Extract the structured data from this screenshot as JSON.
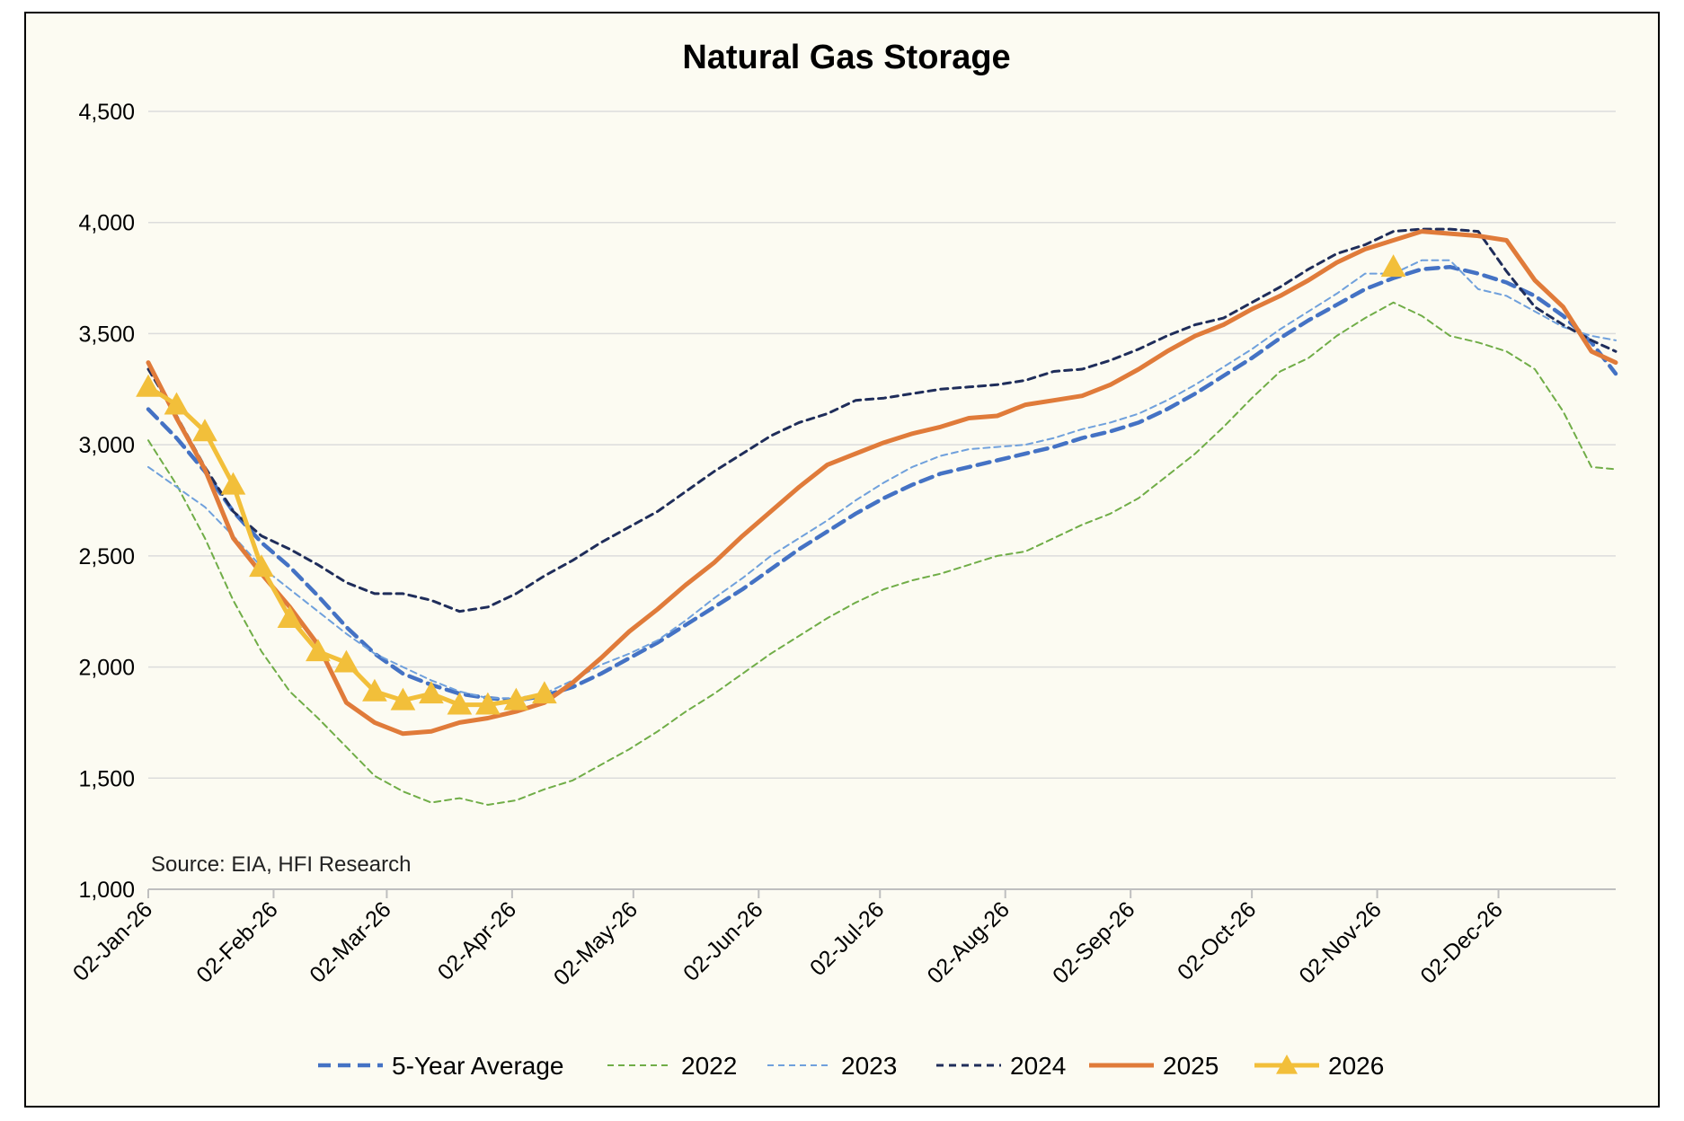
{
  "chart_data": {
    "type": "line",
    "title": "Natural Gas Storage",
    "source_note": "Source: EIA, HFI Research",
    "ylim": [
      1000,
      4500
    ],
    "yticks": [
      1000,
      1500,
      2000,
      2500,
      3000,
      3500,
      4000,
      4500
    ],
    "ytick_labels": [
      "1,000",
      "1,500",
      "2,000",
      "2,500",
      "3,000",
      "3,500",
      "4,000",
      "4,500"
    ],
    "xlim": [
      "2026-01-02",
      "2026-12-31"
    ],
    "xticks": [
      "2026-01-02",
      "2026-02-02",
      "2026-03-02",
      "2026-04-02",
      "2026-05-02",
      "2026-06-02",
      "2026-07-02",
      "2026-08-02",
      "2026-09-02",
      "2026-10-02",
      "2026-11-02",
      "2026-12-02"
    ],
    "xtick_labels": [
      "02-Jan-26",
      "02-Feb-26",
      "02-Mar-26",
      "02-Apr-26",
      "02-May-26",
      "02-Jun-26",
      "02-Jul-26",
      "02-Aug-26",
      "02-Sep-26",
      "02-Oct-26",
      "02-Nov-26",
      "02-Dec-26"
    ],
    "grid": true,
    "legend_position": "bottom",
    "colors": {
      "background": "#fcfbf2",
      "grid": "#dcdcdc",
      "axis": "#bfbfbf",
      "border": "#000000"
    },
    "series": [
      {
        "name": "5-Year Average",
        "color": "#4472c4",
        "dash": "dashed-thick",
        "marker": "none",
        "x": [
          "2026-01-02",
          "2026-01-09",
          "2026-01-16",
          "2026-01-23",
          "2026-01-30",
          "2026-02-06",
          "2026-02-13",
          "2026-02-20",
          "2026-02-27",
          "2026-03-06",
          "2026-03-13",
          "2026-03-20",
          "2026-03-27",
          "2026-04-03",
          "2026-04-10",
          "2026-04-17",
          "2026-04-24",
          "2026-05-01",
          "2026-05-08",
          "2026-05-15",
          "2026-05-22",
          "2026-05-29",
          "2026-06-05",
          "2026-06-12",
          "2026-06-19",
          "2026-06-26",
          "2026-07-03",
          "2026-07-10",
          "2026-07-17",
          "2026-07-24",
          "2026-07-31",
          "2026-08-07",
          "2026-08-14",
          "2026-08-21",
          "2026-08-28",
          "2026-09-04",
          "2026-09-11",
          "2026-09-18",
          "2026-09-25",
          "2026-10-02",
          "2026-10-09",
          "2026-10-16",
          "2026-10-23",
          "2026-10-30",
          "2026-11-06",
          "2026-11-13",
          "2026-11-20",
          "2026-11-27",
          "2026-12-04",
          "2026-12-11",
          "2026-12-18",
          "2026-12-25",
          "2026-12-31"
        ],
        "values": [
          3160,
          3030,
          2880,
          2700,
          2560,
          2450,
          2320,
          2180,
          2060,
          1970,
          1920,
          1880,
          1860,
          1850,
          1870,
          1910,
          1970,
          2040,
          2110,
          2190,
          2270,
          2350,
          2440,
          2530,
          2610,
          2690,
          2760,
          2820,
          2870,
          2900,
          2930,
          2960,
          2990,
          3030,
          3060,
          3100,
          3160,
          3230,
          3310,
          3390,
          3480,
          3560,
          3630,
          3700,
          3750,
          3790,
          3800,
          3770,
          3730,
          3670,
          3580,
          3460,
          3320
        ]
      },
      {
        "name": "2022",
        "color": "#70ad47",
        "dash": "dashed-thin",
        "marker": "none",
        "x": [
          "2026-01-02",
          "2026-01-09",
          "2026-01-16",
          "2026-01-23",
          "2026-01-30",
          "2026-02-06",
          "2026-02-13",
          "2026-02-20",
          "2026-02-27",
          "2026-03-06",
          "2026-03-13",
          "2026-03-20",
          "2026-03-27",
          "2026-04-03",
          "2026-04-10",
          "2026-04-17",
          "2026-04-24",
          "2026-05-01",
          "2026-05-08",
          "2026-05-15",
          "2026-05-22",
          "2026-05-29",
          "2026-06-05",
          "2026-06-12",
          "2026-06-19",
          "2026-06-26",
          "2026-07-03",
          "2026-07-10",
          "2026-07-17",
          "2026-07-24",
          "2026-07-31",
          "2026-08-07",
          "2026-08-14",
          "2026-08-21",
          "2026-08-28",
          "2026-09-04",
          "2026-09-11",
          "2026-09-18",
          "2026-09-25",
          "2026-10-02",
          "2026-10-09",
          "2026-10-16",
          "2026-10-23",
          "2026-10-30",
          "2026-11-06",
          "2026-11-13",
          "2026-11-20",
          "2026-11-27",
          "2026-12-04",
          "2026-12-11",
          "2026-12-18",
          "2026-12-25",
          "2026-12-31"
        ],
        "values": [
          3020,
          2820,
          2580,
          2300,
          2070,
          1890,
          1770,
          1640,
          1510,
          1440,
          1390,
          1410,
          1380,
          1400,
          1450,
          1490,
          1560,
          1630,
          1710,
          1800,
          1880,
          1970,
          2060,
          2140,
          2220,
          2290,
          2350,
          2390,
          2420,
          2460,
          2500,
          2520,
          2580,
          2640,
          2690,
          2760,
          2860,
          2960,
          3080,
          3210,
          3330,
          3390,
          3490,
          3570,
          3640,
          3580,
          3490,
          3460,
          3420,
          3340,
          3150,
          2900,
          2890
        ]
      },
      {
        "name": "2023",
        "color": "#6fa0dc",
        "dash": "dashed-thin",
        "marker": "none",
        "x": [
          "2026-01-02",
          "2026-01-09",
          "2026-01-16",
          "2026-01-23",
          "2026-01-30",
          "2026-02-06",
          "2026-02-13",
          "2026-02-20",
          "2026-02-27",
          "2026-03-06",
          "2026-03-13",
          "2026-03-20",
          "2026-03-27",
          "2026-04-03",
          "2026-04-10",
          "2026-04-17",
          "2026-04-24",
          "2026-05-01",
          "2026-05-08",
          "2026-05-15",
          "2026-05-22",
          "2026-05-29",
          "2026-06-05",
          "2026-06-12",
          "2026-06-19",
          "2026-06-26",
          "2026-07-03",
          "2026-07-10",
          "2026-07-17",
          "2026-07-24",
          "2026-07-31",
          "2026-08-07",
          "2026-08-14",
          "2026-08-21",
          "2026-08-28",
          "2026-09-04",
          "2026-09-11",
          "2026-09-18",
          "2026-09-25",
          "2026-10-02",
          "2026-10-09",
          "2026-10-16",
          "2026-10-23",
          "2026-10-30",
          "2026-11-06",
          "2026-11-13",
          "2026-11-20",
          "2026-11-27",
          "2026-12-04",
          "2026-12-11",
          "2026-12-18",
          "2026-12-25",
          "2026-12-31"
        ],
        "values": [
          2900,
          2810,
          2720,
          2590,
          2450,
          2350,
          2250,
          2150,
          2060,
          2000,
          1940,
          1890,
          1860,
          1860,
          1880,
          1940,
          2010,
          2060,
          2120,
          2210,
          2310,
          2400,
          2500,
          2580,
          2660,
          2750,
          2830,
          2900,
          2950,
          2980,
          2990,
          3000,
          3030,
          3070,
          3100,
          3140,
          3200,
          3270,
          3350,
          3430,
          3520,
          3600,
          3680,
          3770,
          3770,
          3830,
          3830,
          3700,
          3670,
          3600,
          3530,
          3490,
          3470
        ]
      },
      {
        "name": "2024",
        "color": "#1f2d5a",
        "dash": "dashed-medium",
        "marker": "none",
        "x": [
          "2026-01-02",
          "2026-01-09",
          "2026-01-16",
          "2026-01-23",
          "2026-01-30",
          "2026-02-06",
          "2026-02-13",
          "2026-02-20",
          "2026-02-27",
          "2026-03-06",
          "2026-03-13",
          "2026-03-20",
          "2026-03-27",
          "2026-04-03",
          "2026-04-10",
          "2026-04-17",
          "2026-04-24",
          "2026-05-01",
          "2026-05-08",
          "2026-05-15",
          "2026-05-22",
          "2026-05-29",
          "2026-06-05",
          "2026-06-12",
          "2026-06-19",
          "2026-06-26",
          "2026-07-03",
          "2026-07-10",
          "2026-07-17",
          "2026-07-24",
          "2026-07-31",
          "2026-08-07",
          "2026-08-14",
          "2026-08-21",
          "2026-08-28",
          "2026-09-04",
          "2026-09-11",
          "2026-09-18",
          "2026-09-25",
          "2026-10-02",
          "2026-10-09",
          "2026-10-16",
          "2026-10-23",
          "2026-10-30",
          "2026-11-06",
          "2026-11-13",
          "2026-11-20",
          "2026-11-27",
          "2026-12-04",
          "2026-12-11",
          "2026-12-18",
          "2026-12-25",
          "2026-12-31"
        ],
        "values": [
          3340,
          3130,
          2900,
          2700,
          2590,
          2530,
          2460,
          2380,
          2330,
          2330,
          2300,
          2250,
          2270,
          2330,
          2410,
          2480,
          2560,
          2630,
          2700,
          2790,
          2880,
          2960,
          3040,
          3100,
          3140,
          3200,
          3210,
          3230,
          3250,
          3260,
          3270,
          3290,
          3330,
          3340,
          3380,
          3430,
          3490,
          3540,
          3570,
          3640,
          3710,
          3790,
          3860,
          3900,
          3960,
          3970,
          3970,
          3960,
          3780,
          3620,
          3540,
          3470,
          3420
        ]
      },
      {
        "name": "2025",
        "color": "#e07b3a",
        "dash": "solid",
        "marker": "none",
        "x": [
          "2026-01-02",
          "2026-01-09",
          "2026-01-16",
          "2026-01-23",
          "2026-01-30",
          "2026-02-06",
          "2026-02-13",
          "2026-02-20",
          "2026-02-27",
          "2026-03-06",
          "2026-03-13",
          "2026-03-20",
          "2026-03-27",
          "2026-04-03",
          "2026-04-10",
          "2026-04-17",
          "2026-04-24",
          "2026-05-01",
          "2026-05-08",
          "2026-05-15",
          "2026-05-22",
          "2026-05-29",
          "2026-06-05",
          "2026-06-12",
          "2026-06-19",
          "2026-06-26",
          "2026-07-03",
          "2026-07-10",
          "2026-07-17",
          "2026-07-24",
          "2026-07-31",
          "2026-08-07",
          "2026-08-14",
          "2026-08-21",
          "2026-08-28",
          "2026-09-04",
          "2026-09-11",
          "2026-09-18",
          "2026-09-25",
          "2026-10-02",
          "2026-10-09",
          "2026-10-16",
          "2026-10-23",
          "2026-10-30",
          "2026-11-06",
          "2026-11-13",
          "2026-11-20",
          "2026-11-27",
          "2026-12-04",
          "2026-12-11",
          "2026-12-18",
          "2026-12-25",
          "2026-12-31"
        ],
        "values": [
          3370,
          3120,
          2890,
          2580,
          2420,
          2270,
          2100,
          1840,
          1750,
          1700,
          1710,
          1750,
          1770,
          1800,
          1840,
          1930,
          2040,
          2160,
          2260,
          2370,
          2470,
          2590,
          2700,
          2810,
          2910,
          2960,
          3010,
          3050,
          3080,
          3120,
          3130,
          3180,
          3200,
          3220,
          3270,
          3340,
          3420,
          3490,
          3540,
          3610,
          3670,
          3740,
          3820,
          3880,
          3920,
          3960,
          3950,
          3940,
          3920,
          3740,
          3620,
          3420,
          3370
        ]
      },
      {
        "name": "2026",
        "color": "#f2bf3a",
        "dash": "solid",
        "marker": "triangle",
        "x": [
          "2026-01-02",
          "2026-01-09",
          "2026-01-16",
          "2026-01-23",
          "2026-01-30",
          "2026-02-06",
          "2026-02-13",
          "2026-02-20",
          "2026-02-27",
          "2026-03-06",
          "2026-03-13",
          "2026-03-20",
          "2026-03-27",
          "2026-04-03",
          "2026-04-10",
          "2026-11-06"
        ],
        "values": [
          3260,
          3180,
          3060,
          2820,
          2450,
          2220,
          2070,
          2020,
          1890,
          1850,
          1880,
          1830,
          1830,
          1850,
          1880,
          3800
        ],
        "connected_until_index": 14
      }
    ]
  }
}
